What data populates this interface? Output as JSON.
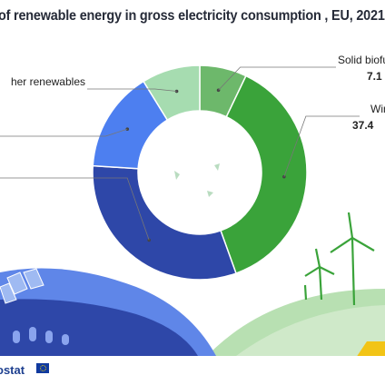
{
  "page": {
    "title": "of renewable energy in gross electricity consumption , EU, 2021",
    "source_logo": "ostat"
  },
  "colors": {
    "wind": "#3aa33a",
    "solid_biofuels": "#6db86b",
    "other_renewables": "#a6dcb0",
    "solar": "#4d7ff0",
    "hydro": "#2e47a8",
    "hill": "#b8e0b2",
    "sky_hill": "#e9f4e6"
  },
  "chart_data": {
    "type": "pie",
    "variant": "donut",
    "start_angle_deg": 0,
    "direction": "clockwise",
    "slices": [
      {
        "key": "solid_biofuels",
        "label": "Solid biofue",
        "value_text": "7.1",
        "value": 7.1
      },
      {
        "key": "wind",
        "label": "Win",
        "value_text": "37.4",
        "value": 37.4
      },
      {
        "key": "hydro",
        "label": "",
        "value_text": "",
        "value": 31.5
      },
      {
        "key": "solar",
        "label": "",
        "value_text": "",
        "value": 15.2
      },
      {
        "key": "other_renewables",
        "label": "her renewables",
        "value_text": "",
        "value": 8.8
      }
    ],
    "title": "of renewable energy in gross electricity consumption , EU, 2021"
  }
}
